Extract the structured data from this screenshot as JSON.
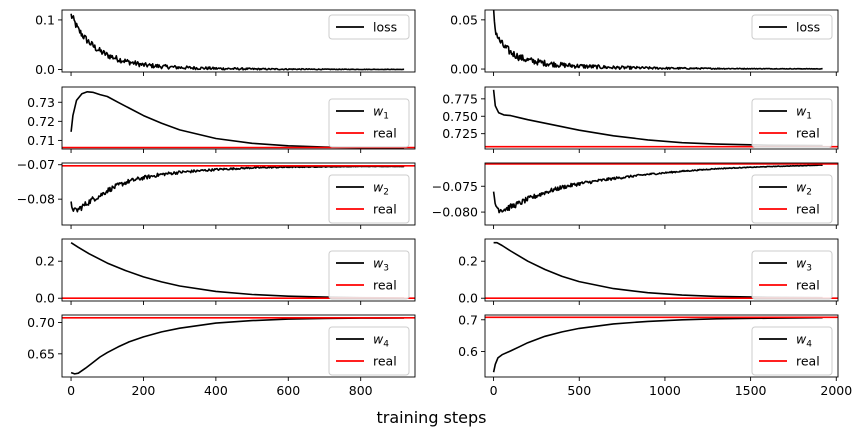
{
  "figure": {
    "xlabel": "training steps"
  },
  "colors": {
    "learned": "#000000",
    "real": "#ff0000"
  },
  "chart_data": [
    {
      "type": "line",
      "panel": "left-loss",
      "xlim": [
        -25,
        950
      ],
      "ylim": [
        -0.005,
        0.12
      ],
      "yticks": [
        0.0,
        0.1
      ],
      "ytick_labels": [
        "0.0",
        "0.1"
      ],
      "xticks": [
        0,
        200,
        400,
        600,
        800
      ],
      "show_xtick_labels": false,
      "legend": "top-right",
      "series": [
        {
          "name": "loss",
          "color": "#000000",
          "noisy": true,
          "x": [
            0,
            10,
            20,
            40,
            60,
            80,
            100,
            130,
            160,
            200,
            250,
            300,
            400,
            500,
            600,
            700,
            800,
            920
          ],
          "y": [
            0.11,
            0.095,
            0.08,
            0.062,
            0.048,
            0.037,
            0.029,
            0.021,
            0.015,
            0.009,
            0.006,
            0.004,
            0.002,
            0.001,
            0.0007,
            0.0004,
            0.0003,
            0.0002
          ]
        }
      ]
    },
    {
      "type": "line",
      "panel": "right-loss",
      "xlim": [
        -50,
        2010
      ],
      "ylim": [
        -0.003,
        0.06
      ],
      "yticks": [
        0.0,
        0.05
      ],
      "ytick_labels": [
        "0.00",
        "0.05"
      ],
      "xticks": [
        0,
        500,
        1000,
        1500,
        2000
      ],
      "show_xtick_labels": false,
      "legend": "top-right",
      "series": [
        {
          "name": "loss",
          "color": "#000000",
          "noisy": true,
          "x": [
            0,
            10,
            30,
            60,
            100,
            150,
            200,
            300,
            400,
            500,
            700,
            1000,
            1300,
            1600,
            1920
          ],
          "y": [
            0.058,
            0.04,
            0.03,
            0.023,
            0.017,
            0.012,
            0.009,
            0.006,
            0.004,
            0.003,
            0.0015,
            0.0008,
            0.0005,
            0.0003,
            0.0002
          ]
        }
      ]
    },
    {
      "type": "line",
      "panel": "left-w1",
      "xlim": [
        -25,
        950
      ],
      "ylim": [
        0.7055,
        0.738
      ],
      "yticks": [
        0.71,
        0.72,
        0.73
      ],
      "ytick_labels": [
        "0.71",
        "0.72",
        "0.73"
      ],
      "xticks": [
        0,
        200,
        400,
        600,
        800
      ],
      "show_xtick_labels": false,
      "legend": "right",
      "series": [
        {
          "name": "w_1",
          "label_base": "w",
          "label_sub": "1",
          "color": "#000000",
          "x": [
            0,
            5,
            15,
            30,
            45,
            60,
            80,
            100,
            130,
            160,
            200,
            250,
            300,
            400,
            500,
            600,
            700,
            800,
            920
          ],
          "y": [
            0.7145,
            0.723,
            0.731,
            0.7345,
            0.7355,
            0.7352,
            0.734,
            0.733,
            0.73,
            0.727,
            0.723,
            0.719,
            0.7155,
            0.711,
            0.7085,
            0.7072,
            0.7065,
            0.7062,
            0.706
          ]
        },
        {
          "name": "real",
          "color": "#ff0000",
          "x": [
            -25,
            950
          ],
          "y": [
            0.7063,
            0.7063
          ]
        }
      ]
    },
    {
      "type": "line",
      "panel": "right-w1",
      "xlim": [
        -50,
        2010
      ],
      "ylim": [
        0.703,
        0.792
      ],
      "yticks": [
        0.725,
        0.75,
        0.775
      ],
      "ytick_labels": [
        "0.725",
        "0.750",
        "0.775"
      ],
      "xticks": [
        0,
        500,
        1000,
        1500,
        2000
      ],
      "show_xtick_labels": false,
      "legend": "right",
      "series": [
        {
          "name": "w_1",
          "label_base": "w",
          "label_sub": "1",
          "color": "#000000",
          "x": [
            0,
            10,
            30,
            60,
            100,
            150,
            200,
            300,
            400,
            500,
            700,
            900,
            1100,
            1300,
            1600,
            1920
          ],
          "y": [
            0.788,
            0.765,
            0.755,
            0.752,
            0.751,
            0.748,
            0.745,
            0.74,
            0.735,
            0.73,
            0.722,
            0.716,
            0.712,
            0.71,
            0.7085,
            0.708
          ]
        },
        {
          "name": "real",
          "color": "#ff0000",
          "x": [
            -50,
            2010
          ],
          "y": [
            0.7063,
            0.7063
          ]
        }
      ]
    },
    {
      "type": "line",
      "panel": "left-w2",
      "xlim": [
        -25,
        950
      ],
      "ylim": [
        -0.0875,
        -0.0695
      ],
      "yticks": [
        -0.08,
        -0.07
      ],
      "ytick_labels": [
        "−0.08",
        "−0.07"
      ],
      "xticks": [
        0,
        200,
        400,
        600,
        800
      ],
      "show_xtick_labels": false,
      "legend": "right",
      "series": [
        {
          "name": "w_2",
          "label_base": "w",
          "label_sub": "2",
          "color": "#000000",
          "noisy": true,
          "x": [
            0,
            10,
            20,
            40,
            60,
            80,
            100,
            130,
            160,
            200,
            250,
            300,
            400,
            500,
            600,
            700,
            800,
            920
          ],
          "y": [
            -0.0815,
            -0.0835,
            -0.083,
            -0.0815,
            -0.08,
            -0.079,
            -0.0775,
            -0.076,
            -0.0748,
            -0.0738,
            -0.0728,
            -0.0722,
            -0.0714,
            -0.0709,
            -0.0707,
            -0.0706,
            -0.0705,
            -0.0705
          ]
        },
        {
          "name": "real",
          "color": "#ff0000",
          "x": [
            -25,
            950
          ],
          "y": [
            -0.0703,
            -0.0703
          ]
        }
      ]
    },
    {
      "type": "line",
      "panel": "right-w2",
      "xlim": [
        -50,
        2010
      ],
      "ylim": [
        -0.0825,
        -0.0705
      ],
      "yticks": [
        -0.08,
        -0.075
      ],
      "ytick_labels": [
        "−0.080",
        "−0.075"
      ],
      "xticks": [
        0,
        500,
        1000,
        1500,
        2000
      ],
      "show_xtick_labels": false,
      "legend": "right",
      "series": [
        {
          "name": "w_2",
          "label_base": "w",
          "label_sub": "2",
          "color": "#000000",
          "noisy": true,
          "x": [
            0,
            10,
            30,
            60,
            100,
            150,
            200,
            300,
            400,
            500,
            700,
            900,
            1100,
            1300,
            1600,
            1920
          ],
          "y": [
            -0.0765,
            -0.0785,
            -0.0795,
            -0.0795,
            -0.079,
            -0.0783,
            -0.0775,
            -0.0762,
            -0.0752,
            -0.0745,
            -0.0735,
            -0.0727,
            -0.0721,
            -0.0716,
            -0.0712,
            -0.0709
          ]
        },
        {
          "name": "real",
          "color": "#ff0000",
          "x": [
            -50,
            2010
          ],
          "y": [
            -0.0707,
            -0.0707
          ]
        }
      ]
    },
    {
      "type": "line",
      "panel": "left-w3",
      "xlim": [
        -25,
        950
      ],
      "ylim": [
        -0.015,
        0.32
      ],
      "yticks": [
        0.0,
        0.2
      ],
      "ytick_labels": [
        "0.0",
        "0.2"
      ],
      "xticks": [
        0,
        200,
        400,
        600,
        800
      ],
      "show_xtick_labels": false,
      "legend": "right",
      "series": [
        {
          "name": "w_3",
          "label_base": "w",
          "label_sub": "3",
          "color": "#000000",
          "x": [
            0,
            20,
            50,
            100,
            150,
            200,
            250,
            300,
            400,
            500,
            600,
            700,
            800,
            920
          ],
          "y": [
            0.3,
            0.275,
            0.24,
            0.19,
            0.15,
            0.115,
            0.088,
            0.066,
            0.037,
            0.02,
            0.011,
            0.006,
            0.003,
            0.002
          ]
        },
        {
          "name": "real",
          "color": "#ff0000",
          "x": [
            -25,
            950
          ],
          "y": [
            0.0,
            0.0
          ]
        }
      ]
    },
    {
      "type": "line",
      "panel": "right-w3",
      "xlim": [
        -50,
        2010
      ],
      "ylim": [
        -0.015,
        0.32
      ],
      "yticks": [
        0.0,
        0.2
      ],
      "ytick_labels": [
        "0.0",
        "0.2"
      ],
      "xticks": [
        0,
        500,
        1000,
        1500,
        2000
      ],
      "show_xtick_labels": false,
      "legend": "right",
      "series": [
        {
          "name": "w_3",
          "label_base": "w",
          "label_sub": "3",
          "color": "#000000",
          "x": [
            0,
            20,
            50,
            100,
            200,
            300,
            400,
            500,
            700,
            900,
            1100,
            1300,
            1600,
            1920
          ],
          "y": [
            0.3,
            0.3,
            0.285,
            0.255,
            0.2,
            0.155,
            0.118,
            0.09,
            0.052,
            0.03,
            0.017,
            0.01,
            0.005,
            0.003
          ]
        },
        {
          "name": "real",
          "color": "#ff0000",
          "x": [
            -50,
            2010
          ],
          "y": [
            0.0,
            0.0
          ]
        }
      ]
    },
    {
      "type": "line",
      "panel": "left-w4",
      "xlim": [
        -25,
        950
      ],
      "ylim": [
        0.613,
        0.712
      ],
      "yticks": [
        0.65,
        0.7
      ],
      "ytick_labels": [
        "0.65",
        "0.70"
      ],
      "xticks": [
        0,
        200,
        400,
        600,
        800
      ],
      "xtick_labels": [
        "0",
        "200",
        "400",
        "600",
        "800"
      ],
      "show_xtick_labels": true,
      "legend": "right",
      "series": [
        {
          "name": "w_4",
          "label_base": "w",
          "label_sub": "4",
          "color": "#000000",
          "x": [
            0,
            10,
            20,
            40,
            60,
            80,
            100,
            130,
            160,
            200,
            250,
            300,
            400,
            500,
            600,
            700,
            800,
            920
          ],
          "y": [
            0.62,
            0.618,
            0.619,
            0.627,
            0.636,
            0.645,
            0.652,
            0.661,
            0.669,
            0.677,
            0.685,
            0.691,
            0.699,
            0.703,
            0.7055,
            0.7065,
            0.707,
            0.7072
          ]
        },
        {
          "name": "real",
          "color": "#ff0000",
          "x": [
            -25,
            950
          ],
          "y": [
            0.7075,
            0.7075
          ]
        }
      ]
    },
    {
      "type": "line",
      "panel": "right-w4",
      "xlim": [
        -50,
        2010
      ],
      "ylim": [
        0.52,
        0.715
      ],
      "yticks": [
        0.6,
        0.7
      ],
      "ytick_labels": [
        "0.6",
        "0.7"
      ],
      "xticks": [
        0,
        500,
        1000,
        1500,
        2000
      ],
      "xtick_labels": [
        "0",
        "500",
        "1000",
        "1500",
        "2000"
      ],
      "show_xtick_labels": true,
      "legend": "right",
      "series": [
        {
          "name": "w_4",
          "label_base": "w",
          "label_sub": "4",
          "color": "#000000",
          "x": [
            0,
            10,
            25,
            50,
            100,
            150,
            200,
            300,
            400,
            500,
            700,
            900,
            1100,
            1300,
            1600,
            1920
          ],
          "y": [
            0.535,
            0.56,
            0.58,
            0.59,
            0.602,
            0.615,
            0.628,
            0.648,
            0.662,
            0.673,
            0.687,
            0.695,
            0.7,
            0.703,
            0.705,
            0.7065
          ]
        },
        {
          "name": "real",
          "color": "#ff0000",
          "x": [
            -50,
            2010
          ],
          "y": [
            0.7078,
            0.7078
          ]
        }
      ]
    }
  ]
}
